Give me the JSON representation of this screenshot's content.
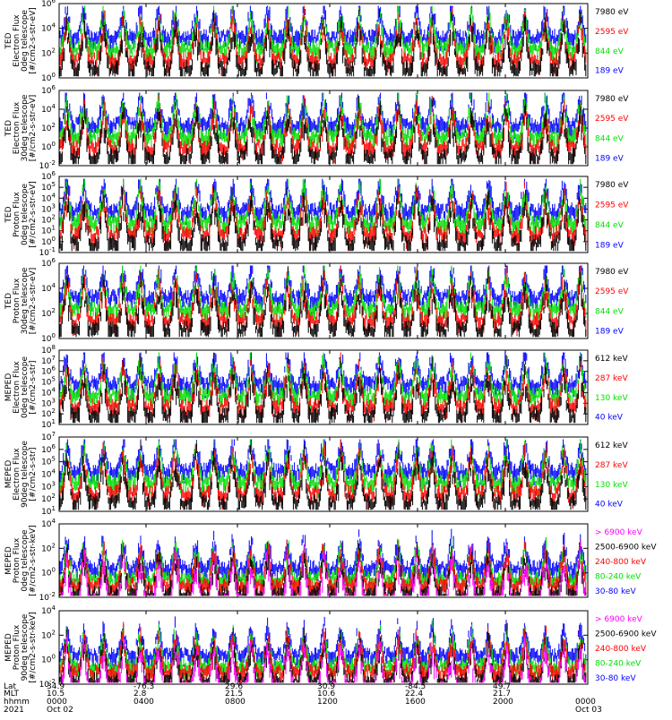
{
  "colors": {
    "blue": "#0000ff",
    "red": "#ff0000",
    "green": "#00e000",
    "black": "#000000",
    "magenta": "#ff00ff"
  },
  "time_axis": {
    "rows": [
      {
        "label": "Lat",
        "values": [
          "34.9",
          "-76.3",
          "29.6",
          "30.9",
          "-84.5",
          "49.7",
          ""
        ]
      },
      {
        "label": "MLT",
        "values": [
          "10.5",
          "2.8",
          "21.5",
          "10.6",
          "22.4",
          "21.7",
          ""
        ]
      },
      {
        "label": "hhmm",
        "values": [
          "0000",
          "0400",
          "0800",
          "1200",
          "1600",
          "2000",
          "0000"
        ]
      },
      {
        "label": "2021",
        "values": [
          "Oct 02",
          "",
          "",
          "",
          "",
          "",
          "Oct 03"
        ]
      }
    ]
  },
  "chart_data": [
    {
      "type": "line",
      "ylabel": [
        "TED",
        "Electron Flux",
        "0deg telescope",
        "[#/cm2-s-str-eV]"
      ],
      "yscale": "log",
      "ticks": [
        {
          "exp": "0",
          "frac": 0.0
        },
        {
          "exp": "2",
          "frac": 0.333
        },
        {
          "exp": "4",
          "frac": 0.667
        },
        {
          "exp": "6",
          "frac": 1.0
        }
      ],
      "series": [
        {
          "name": "7980 eV",
          "color": "#000000"
        },
        {
          "name": "2595 eV",
          "color": "#ff0000"
        },
        {
          "name": "844 eV",
          "color": "#00e000"
        },
        {
          "name": "189 eV",
          "color": "#0000ff"
        }
      ]
    },
    {
      "type": "line",
      "ylabel": [
        "TED",
        "Electron Flux",
        "30deg telescope",
        "[#/cm2-s-str-eV]"
      ],
      "yscale": "log",
      "ticks": [
        {
          "exp": "-2",
          "frac": 0.0
        },
        {
          "exp": "0",
          "frac": 0.25
        },
        {
          "exp": "2",
          "frac": 0.5
        },
        {
          "exp": "4",
          "frac": 0.75
        },
        {
          "exp": "6",
          "frac": 1.0
        }
      ],
      "series": [
        {
          "name": "7980 eV",
          "color": "#000000"
        },
        {
          "name": "2595 eV",
          "color": "#ff0000"
        },
        {
          "name": "844 eV",
          "color": "#00e000"
        },
        {
          "name": "189 eV",
          "color": "#0000ff"
        }
      ]
    },
    {
      "type": "line",
      "ylabel": [
        "TED",
        "Proton Flux",
        "0deg telescope",
        "[#/cm2-s-str-eV]"
      ],
      "yscale": "log",
      "ticks": [
        {
          "exp": "-1",
          "frac": 0.0
        },
        {
          "exp": "0",
          "frac": 0.143
        },
        {
          "exp": "1",
          "frac": 0.286
        },
        {
          "exp": "2",
          "frac": 0.429
        },
        {
          "exp": "3",
          "frac": 0.571
        },
        {
          "exp": "4",
          "frac": 0.714
        },
        {
          "exp": "5",
          "frac": 0.857
        },
        {
          "exp": "6",
          "frac": 1.0
        }
      ],
      "series": [
        {
          "name": "7980 eV",
          "color": "#000000"
        },
        {
          "name": "2595 eV",
          "color": "#ff0000"
        },
        {
          "name": "844 eV",
          "color": "#00e000"
        },
        {
          "name": "189 eV",
          "color": "#0000ff"
        }
      ]
    },
    {
      "type": "line",
      "ylabel": [
        "TED",
        "Proton Flux",
        "30deg telescope",
        "[#/cm2-s-str-eV]"
      ],
      "yscale": "log",
      "ticks": [
        {
          "exp": "0",
          "frac": 0.0
        },
        {
          "exp": "2",
          "frac": 0.333
        },
        {
          "exp": "4",
          "frac": 0.667
        },
        {
          "exp": "6",
          "frac": 1.0
        }
      ],
      "series": [
        {
          "name": "7980 eV",
          "color": "#000000"
        },
        {
          "name": "2595 eV",
          "color": "#ff0000"
        },
        {
          "name": "844 eV",
          "color": "#00e000"
        },
        {
          "name": "189 eV",
          "color": "#0000ff"
        }
      ]
    },
    {
      "type": "line",
      "ylabel": [
        "MEPED",
        "Electron Flux",
        "0deg telescope",
        "[#/cm2-s-str]"
      ],
      "yscale": "log",
      "ticks": [
        {
          "exp": "1",
          "frac": 0.0
        },
        {
          "exp": "2",
          "frac": 0.143
        },
        {
          "exp": "3",
          "frac": 0.286
        },
        {
          "exp": "4",
          "frac": 0.429
        },
        {
          "exp": "5",
          "frac": 0.571
        },
        {
          "exp": "6",
          "frac": 0.714
        },
        {
          "exp": "7",
          "frac": 0.857
        },
        {
          "exp": "8",
          "frac": 1.0
        }
      ],
      "series": [
        {
          "name": "612 keV",
          "color": "#000000"
        },
        {
          "name": "287 keV",
          "color": "#ff0000"
        },
        {
          "name": "130 keV",
          "color": "#00e000"
        },
        {
          "name": "40 keV",
          "color": "#0000ff"
        }
      ]
    },
    {
      "type": "line",
      "ylabel": [
        "MEPED",
        "Electron Flux",
        "90deg telescope",
        "[#/cm2-s-str]"
      ],
      "yscale": "log",
      "ticks": [
        {
          "exp": "1",
          "frac": 0.0
        },
        {
          "exp": "2",
          "frac": 0.167
        },
        {
          "exp": "3",
          "frac": 0.333
        },
        {
          "exp": "4",
          "frac": 0.5
        },
        {
          "exp": "5",
          "frac": 0.667
        },
        {
          "exp": "6",
          "frac": 0.833
        },
        {
          "exp": "7",
          "frac": 1.0
        }
      ],
      "series": [
        {
          "name": "612 keV",
          "color": "#000000"
        },
        {
          "name": "287 keV",
          "color": "#ff0000"
        },
        {
          "name": "130 keV",
          "color": "#00e000"
        },
        {
          "name": "40 keV",
          "color": "#0000ff"
        }
      ]
    },
    {
      "type": "line",
      "ylabel": [
        "MEPED",
        "Proton Flux",
        "0deg telescope",
        "[#/cm2-s-str-keV]"
      ],
      "yscale": "log",
      "ticks": [
        {
          "exp": "-2",
          "frac": 0.0
        },
        {
          "exp": "0",
          "frac": 0.333
        },
        {
          "exp": "2",
          "frac": 0.667
        },
        {
          "exp": "4",
          "frac": 1.0
        }
      ],
      "series": [
        {
          "name": "> 6900 keV",
          "color": "#ff00ff"
        },
        {
          "name": "2500-6900 keV",
          "color": "#000000"
        },
        {
          "name": "240-800 keV",
          "color": "#ff0000"
        },
        {
          "name": "80-240 keV",
          "color": "#00e000"
        },
        {
          "name": "30-80 keV",
          "color": "#0000ff"
        }
      ]
    },
    {
      "type": "line",
      "ylabel": [
        "MEPED",
        "Proton Flux",
        "90deg telescope",
        "[#/cm2-s-str-keV]"
      ],
      "yscale": "log",
      "ticks": [
        {
          "exp": "-2",
          "frac": 0.0
        },
        {
          "exp": "0",
          "frac": 0.333
        },
        {
          "exp": "2",
          "frac": 0.667
        },
        {
          "exp": "4",
          "frac": 1.0
        }
      ],
      "series": [
        {
          "name": "> 6900 keV",
          "color": "#ff00ff"
        },
        {
          "name": "2500-6900 keV",
          "color": "#000000"
        },
        {
          "name": "240-800 keV",
          "color": "#ff0000"
        },
        {
          "name": "80-240 keV",
          "color": "#00e000"
        },
        {
          "name": "30-80 keV",
          "color": "#0000ff"
        }
      ]
    }
  ]
}
